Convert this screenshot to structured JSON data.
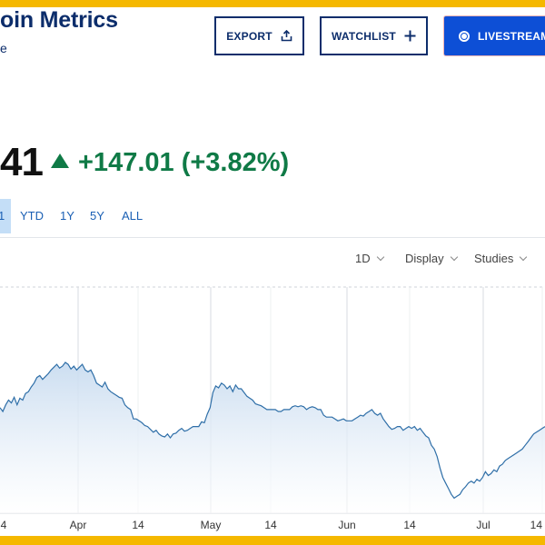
{
  "header": {
    "title": "oin Metrics",
    "subtitle": "e"
  },
  "toolbar": {
    "export_label": "EXPORT",
    "watchlist_label": "WATCHLIST",
    "livestream_label": "LIVESTREAM"
  },
  "quote": {
    "price": "41",
    "change": "+147.01 (+3.82%)",
    "change_direction": "up",
    "change_color": "#0f7a46"
  },
  "range_tabs": [
    {
      "label": "1",
      "active": true
    },
    {
      "label": "YTD",
      "active": false
    },
    {
      "label": "1Y",
      "active": false
    },
    {
      "label": "5Y",
      "active": false
    },
    {
      "label": "ALL",
      "active": false
    }
  ],
  "chart_controls": {
    "interval_label": "1D",
    "display_label": "Display",
    "studies_label": "Studies"
  },
  "chart_data": {
    "type": "area",
    "x_tick_labels": [
      "4",
      "Apr",
      "14",
      "May",
      "14",
      "Jun",
      "14",
      "Jul",
      "14"
    ],
    "series_color": "#2f6fa8",
    "fill_color": "#d7e5f4",
    "grid": true,
    "values": [
      472,
      468,
      475,
      480,
      477,
      483,
      475,
      482,
      480,
      487,
      489,
      494,
      498,
      504,
      506,
      502,
      505,
      508,
      512,
      515,
      518,
      514,
      516,
      520,
      518,
      513,
      516,
      512,
      515,
      518,
      512,
      510,
      512,
      506,
      498,
      496,
      494,
      499,
      492,
      489,
      487,
      485,
      483,
      482,
      475,
      472,
      470,
      460,
      460,
      458,
      456,
      453,
      452,
      449,
      446,
      448,
      444,
      442,
      441,
      444,
      440,
      444,
      445,
      448,
      450,
      447,
      448,
      450,
      452,
      452,
      452,
      457,
      456,
      465,
      472,
      488,
      495,
      493,
      498,
      496,
      492,
      495,
      489,
      496,
      492,
      492,
      488,
      484,
      482,
      480,
      476,
      475,
      474,
      472,
      470,
      470,
      470,
      470,
      468,
      468,
      470,
      470,
      470,
      473,
      474,
      473,
      474,
      473,
      470,
      472,
      473,
      472,
      470,
      470,
      464,
      462,
      462,
      462,
      460,
      458,
      459,
      460,
      458,
      458,
      458,
      460,
      462,
      464,
      463,
      466,
      468,
      470,
      466,
      464,
      466,
      460,
      456,
      452,
      449,
      450,
      452,
      452,
      448,
      450,
      452,
      450,
      452,
      448,
      450,
      446,
      442,
      440,
      432,
      428,
      420,
      408,
      398,
      392,
      386,
      380,
      376,
      378,
      380,
      385,
      388,
      392,
      394,
      392,
      396,
      394,
      398,
      404,
      400,
      402,
      406,
      404,
      410,
      412,
      416,
      418,
      420,
      422,
      424,
      426,
      428,
      432,
      436,
      440,
      444,
      446,
      448,
      450,
      452
    ]
  }
}
